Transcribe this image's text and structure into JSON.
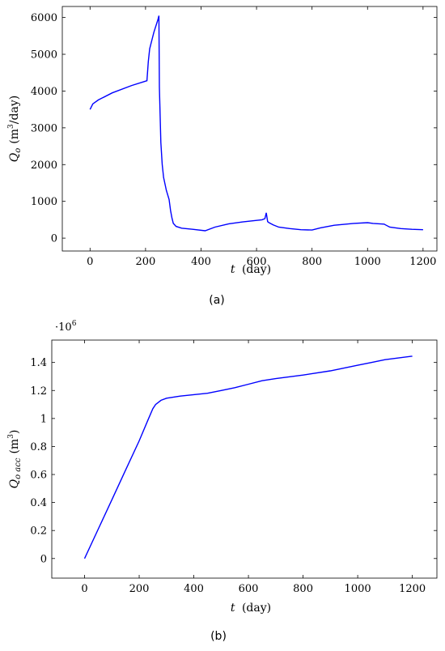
{
  "chart_data": [
    {
      "type": "line",
      "caption": "(a)",
      "xlabel_var": "t",
      "xlabel_unit": "(day)",
      "ylabel_var": "Q",
      "ylabel_sub": "o",
      "ylabel_unit": "(m",
      "ylabel_sup": "3",
      "ylabel_tail": "/day)",
      "xlim": [
        -100,
        1250
      ],
      "ylim": [
        -350,
        6300
      ],
      "xticks": [
        0,
        200,
        400,
        600,
        800,
        1000,
        1200
      ],
      "yticks": [
        0,
        1000,
        2000,
        3000,
        4000,
        5000,
        6000
      ],
      "line_color": "#0000ff",
      "x": [
        0,
        10,
        30,
        80,
        150,
        205,
        210,
        215,
        230,
        245,
        248,
        250,
        255,
        260,
        265,
        275,
        285,
        290,
        295,
        300,
        310,
        330,
        370,
        415,
        450,
        500,
        550,
        620,
        630,
        635,
        640,
        645,
        660,
        680,
        720,
        760,
        800,
        830,
        880,
        950,
        1000,
        1020,
        1060,
        1065,
        1080,
        1120,
        1160,
        1200
      ],
      "y": [
        3500,
        3650,
        3760,
        3950,
        4150,
        4280,
        4800,
        5150,
        5600,
        5950,
        6050,
        4100,
        2600,
        2000,
        1650,
        1300,
        1050,
        750,
        550,
        400,
        320,
        270,
        240,
        200,
        300,
        390,
        440,
        500,
        530,
        690,
        450,
        420,
        360,
        300,
        260,
        230,
        220,
        280,
        350,
        400,
        420,
        400,
        380,
        360,
        300,
        260,
        240,
        230
      ]
    },
    {
      "type": "line",
      "caption": "(b)",
      "multiplier": "·10",
      "multiplier_exp": "6",
      "xlabel_var": "t",
      "xlabel_unit": "(day)",
      "ylabel_var": "Q",
      "ylabel_sub": "o acc",
      "ylabel_unit": "(m",
      "ylabel_sup": "3",
      "ylabel_tail": ")",
      "xlim": [
        -120,
        1290
      ],
      "ylim": [
        -0.14,
        1.56
      ],
      "xticks": [
        0,
        200,
        400,
        600,
        800,
        1000,
        1200
      ],
      "yticks": [
        0,
        0.2,
        0.4,
        0.6,
        0.8,
        1,
        1.2,
        1.4
      ],
      "ytick_labels": [
        "0",
        "0.2",
        "0.4",
        "0.6",
        "0.8",
        "1",
        "1.2",
        "1.4"
      ],
      "line_color": "#0000ff",
      "x": [
        0,
        50,
        100,
        150,
        200,
        230,
        250,
        260,
        280,
        300,
        350,
        400,
        450,
        500,
        550,
        600,
        650,
        700,
        800,
        900,
        1000,
        1050,
        1100,
        1200
      ],
      "y": [
        0.0,
        0.21,
        0.42,
        0.63,
        0.84,
        0.98,
        1.07,
        1.1,
        1.13,
        1.145,
        1.16,
        1.17,
        1.18,
        1.2,
        1.22,
        1.245,
        1.27,
        1.285,
        1.31,
        1.34,
        1.38,
        1.4,
        1.42,
        1.445
      ]
    }
  ]
}
